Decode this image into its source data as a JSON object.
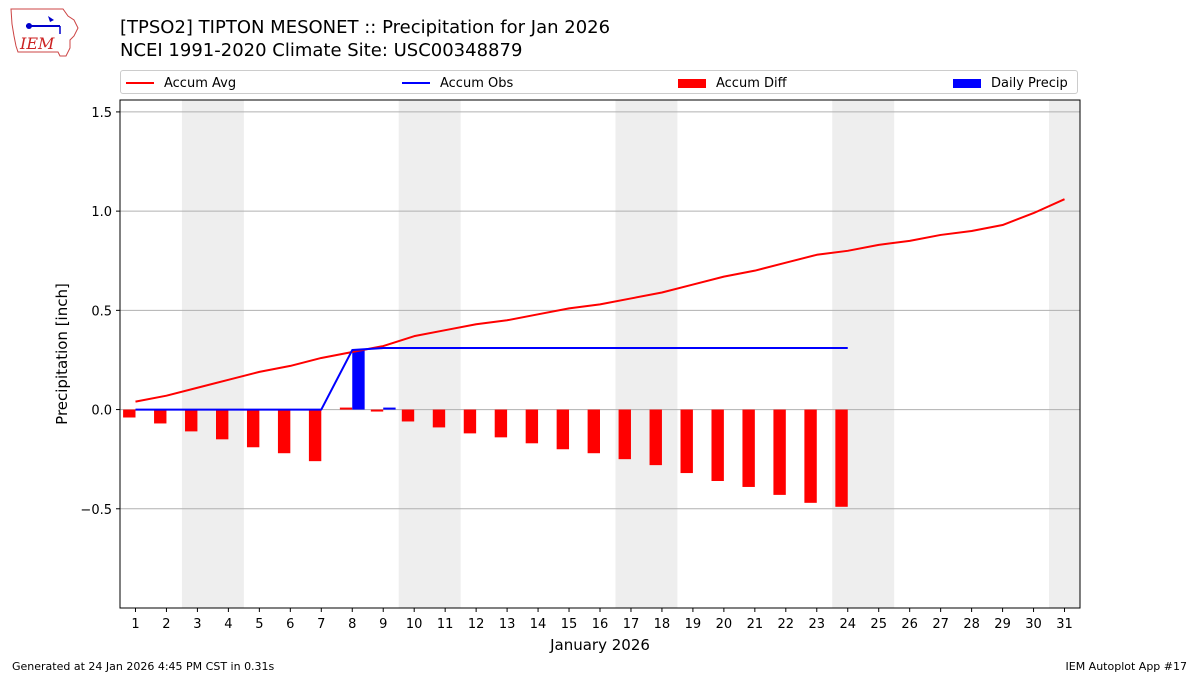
{
  "logo_text": "IEM",
  "title_line1": "[TPSO2] TIPTON MESONET :: Precipitation for Jan 2026",
  "title_line2": "NCEI 1991-2020 Climate Site: USC00348879",
  "footer_left": "Generated at 24 Jan 2026 4:45 PM CST in 0.31s",
  "footer_right": "IEM Autoplot App #17",
  "colors": {
    "avg": "#ff0000",
    "obs": "#0000ff",
    "diff": "#ff0000",
    "daily": "#0000ff",
    "weekend": "#eeeeee",
    "grid": "#b0b0b0"
  },
  "legend": [
    {
      "label": "Accum Avg",
      "kind": "line",
      "color": "#ff0000"
    },
    {
      "label": "Accum Obs",
      "kind": "line",
      "color": "#0000ff"
    },
    {
      "label": "Accum Diff",
      "kind": "patch",
      "color": "#ff0000"
    },
    {
      "label": "Daily Precip",
      "kind": "patch",
      "color": "#0000ff"
    }
  ],
  "chart_data": {
    "type": "bar",
    "xlabel": "January 2026",
    "ylabel": "Precipitation [inch]",
    "xlim": [
      0.5,
      31.5
    ],
    "ylim": [
      -1.0,
      1.56
    ],
    "yticks": [
      -0.5,
      0.0,
      0.5,
      1.0,
      1.5
    ],
    "ytick_labels": [
      "−0.5",
      "0.0",
      "0.5",
      "1.0",
      "1.5"
    ],
    "categories": [
      "1",
      "2",
      "3",
      "4",
      "5",
      "6",
      "7",
      "8",
      "9",
      "10",
      "11",
      "12",
      "13",
      "14",
      "15",
      "16",
      "17",
      "18",
      "19",
      "20",
      "21",
      "22",
      "23",
      "24",
      "25",
      "26",
      "27",
      "28",
      "29",
      "30",
      "31"
    ],
    "weekend_spans": [
      [
        3,
        4
      ],
      [
        10,
        11
      ],
      [
        17,
        18
      ],
      [
        24,
        25
      ],
      [
        31,
        31
      ]
    ],
    "series": [
      {
        "name": "Accum Avg",
        "type": "line",
        "x": [
          1,
          2,
          3,
          4,
          5,
          6,
          7,
          8,
          9,
          10,
          11,
          12,
          13,
          14,
          15,
          16,
          17,
          18,
          19,
          20,
          21,
          22,
          23,
          24,
          25,
          26,
          27,
          28,
          29,
          30,
          31
        ],
        "values": [
          0.04,
          0.07,
          0.11,
          0.15,
          0.19,
          0.22,
          0.26,
          0.29,
          0.32,
          0.37,
          0.4,
          0.43,
          0.45,
          0.48,
          0.51,
          0.53,
          0.56,
          0.59,
          0.63,
          0.67,
          0.7,
          0.74,
          0.78,
          0.8,
          0.83,
          0.85,
          0.88,
          0.9,
          0.93,
          0.99,
          1.06
        ]
      },
      {
        "name": "Accum Obs",
        "type": "line",
        "x": [
          1,
          2,
          3,
          4,
          5,
          6,
          7,
          8,
          9,
          10,
          11,
          12,
          13,
          14,
          15,
          16,
          17,
          18,
          19,
          20,
          21,
          22,
          23,
          24
        ],
        "values": [
          0.0,
          0.0,
          0.0,
          0.0,
          0.0,
          0.0,
          0.0,
          0.3,
          0.31,
          0.31,
          0.31,
          0.31,
          0.31,
          0.31,
          0.31,
          0.31,
          0.31,
          0.31,
          0.31,
          0.31,
          0.31,
          0.31,
          0.31,
          0.31
        ]
      },
      {
        "name": "Accum Diff",
        "type": "bar",
        "x": [
          1,
          2,
          3,
          4,
          5,
          6,
          7,
          8,
          9,
          10,
          11,
          12,
          13,
          14,
          15,
          16,
          17,
          18,
          19,
          20,
          21,
          22,
          23,
          24
        ],
        "values": [
          -0.04,
          -0.07,
          -0.11,
          -0.15,
          -0.19,
          -0.22,
          -0.26,
          0.01,
          -0.01,
          -0.06,
          -0.09,
          -0.12,
          -0.14,
          -0.17,
          -0.2,
          -0.22,
          -0.25,
          -0.28,
          -0.32,
          -0.36,
          -0.39,
          -0.43,
          -0.47,
          -0.49
        ]
      },
      {
        "name": "Daily Precip",
        "type": "bar",
        "x": [
          8,
          9
        ],
        "values": [
          0.3,
          0.01
        ]
      }
    ]
  }
}
